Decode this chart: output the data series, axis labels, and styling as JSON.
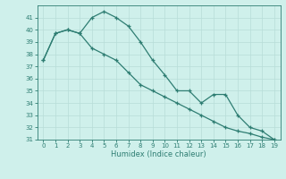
{
  "line1_x": [
    0,
    1,
    2,
    3,
    4,
    5,
    6,
    7,
    8,
    9,
    10,
    11,
    12,
    13,
    14,
    15,
    16,
    17,
    18,
    19
  ],
  "line1_y": [
    37.5,
    39.7,
    40.0,
    39.7,
    41.0,
    41.5,
    41.0,
    40.3,
    39.0,
    37.5,
    36.3,
    35.0,
    35.0,
    34.0,
    34.7,
    34.7,
    33.0,
    32.0,
    31.7,
    31.0
  ],
  "line2_x": [
    0,
    1,
    2,
    3,
    4,
    5,
    6,
    7,
    8,
    9,
    10,
    11,
    12,
    13,
    14,
    15,
    16,
    17,
    18,
    19
  ],
  "line2_y": [
    37.5,
    39.7,
    40.0,
    39.7,
    38.5,
    38.0,
    37.5,
    36.5,
    35.5,
    35.0,
    34.5,
    34.0,
    33.5,
    33.0,
    32.5,
    32.0,
    31.7,
    31.5,
    31.2,
    31.0
  ],
  "line_color": "#2e7d72",
  "bg_color": "#cff0eb",
  "grid_color": "#b8ddd8",
  "xlabel": "Humidex (Indice chaleur)",
  "ylim": [
    31,
    42
  ],
  "xlim": [
    -0.5,
    19.5
  ],
  "yticks": [
    31,
    32,
    33,
    34,
    35,
    36,
    37,
    38,
    39,
    40,
    41
  ],
  "xticks": [
    0,
    1,
    2,
    3,
    4,
    5,
    6,
    7,
    8,
    9,
    10,
    11,
    12,
    13,
    14,
    15,
    16,
    17,
    18,
    19
  ],
  "tick_fontsize": 5.0,
  "xlabel_fontsize": 6.0
}
